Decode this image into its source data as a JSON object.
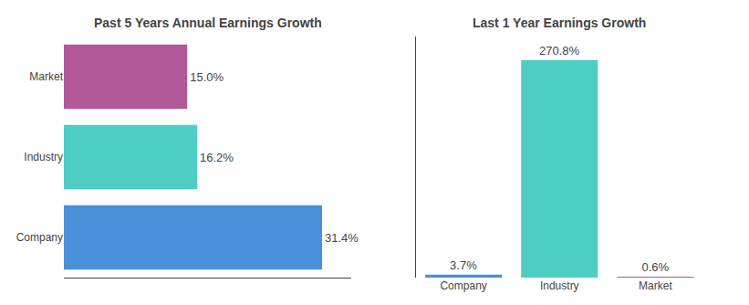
{
  "chart_data": [
    {
      "type": "bar",
      "title": "Past 5 Years Annual Earnings Growth",
      "orientation": "horizontal",
      "categories": [
        "Company",
        "Industry",
        "Market"
      ],
      "values": [
        31.4,
        16.2,
        15.0
      ],
      "value_labels": [
        "31.4%",
        "16.2%",
        "15.0%"
      ],
      "colors": [
        "#4a90d9",
        "#4ecdc4",
        "#b05898"
      ],
      "xlim": [
        0,
        35
      ],
      "data_labels": true,
      "grid": false,
      "tick_labels": "y"
    },
    {
      "type": "bar",
      "title": "Last 1 Year Earnings Growth",
      "categories": [
        "Company",
        "Industry",
        "Market"
      ],
      "values": [
        3.7,
        270.8,
        0.6
      ],
      "value_labels": [
        "3.7%",
        "270.8%",
        "0.6%"
      ],
      "colors": [
        "#4a90d9",
        "#4ecdc4",
        "#b05898"
      ],
      "ylim": [
        0,
        300
      ],
      "data_labels": true,
      "grid": false,
      "tick_labels": "x"
    }
  ]
}
